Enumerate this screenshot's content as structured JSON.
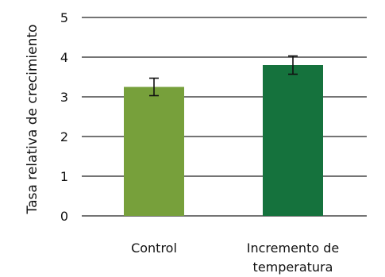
{
  "chart_data": {
    "type": "bar",
    "ylabel": "Tasa relativa de crecimiento",
    "ylim": [
      0,
      5
    ],
    "yticks": [
      0,
      1,
      2,
      3,
      4,
      5
    ],
    "grid": true,
    "categories": [
      {
        "label_lines": [
          "Control"
        ],
        "value": 3.25,
        "error": 0.22,
        "color": "#77a03b"
      },
      {
        "label_lines": [
          "Incremento de",
          "temperatura"
        ],
        "value": 3.8,
        "error": 0.23,
        "color": "#15723d"
      }
    ]
  }
}
